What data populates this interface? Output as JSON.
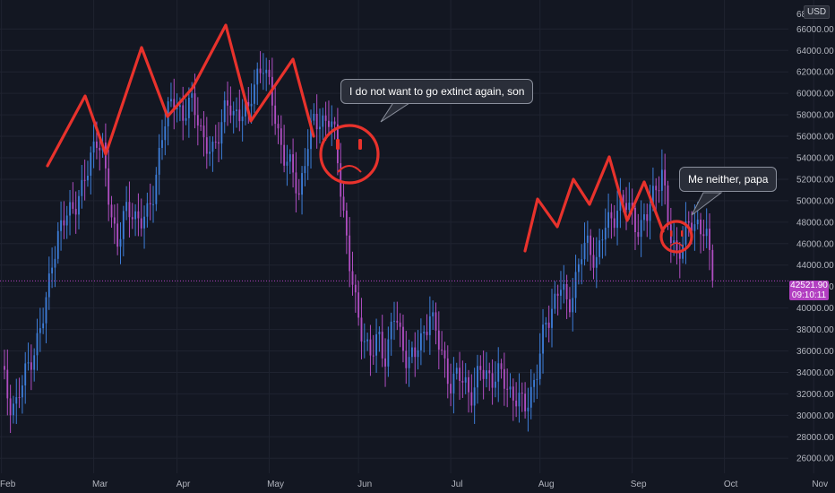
{
  "chart_data": {
    "type": "candlestick",
    "currency": "USD",
    "y_ticks": [
      26000,
      28000,
      30000,
      32000,
      34000,
      36000,
      38000,
      40000,
      42000,
      44000,
      46000,
      48000,
      50000,
      52000,
      54000,
      56000,
      58000,
      60000,
      62000,
      64000,
      66000
    ],
    "y_tick_labels": [
      "26000.00",
      "28000.00",
      "30000.00",
      "32000.00",
      "34000.00",
      "36000.00",
      "38000.00",
      "40000.00",
      "42000.00",
      "44000.00",
      "46000.00",
      "48000.00",
      "50000.00",
      "52000.00",
      "54000.00",
      "56000.00",
      "58000.00",
      "60000.00",
      "62000.00",
      "64000.00",
      "66000.00"
    ],
    "y_top_partial_label": "68",
    "ylim": [
      24600,
      68700
    ],
    "x_ticks": [
      "Feb",
      "Mar",
      "Apr",
      "May",
      "Jun",
      "Jul",
      "Aug",
      "Sep",
      "Oct",
      "Nov"
    ],
    "days_visible": 265,
    "data_days": 239,
    "month_start_day": [
      0,
      31,
      59,
      90,
      120,
      151,
      181,
      212,
      243,
      273
    ],
    "close_path": [
      [
        0,
        34000
      ],
      [
        3,
        31500
      ],
      [
        6,
        31000
      ],
      [
        9,
        33000
      ],
      [
        12,
        35500
      ],
      [
        15,
        37000
      ],
      [
        18,
        39500
      ],
      [
        21,
        45000
      ],
      [
        24,
        47000
      ],
      [
        27,
        48500
      ],
      [
        30,
        50000
      ],
      [
        33,
        50500
      ],
      [
        36,
        53000
      ],
      [
        39,
        56500
      ],
      [
        42,
        54000
      ],
      [
        45,
        49000
      ],
      [
        48,
        46500
      ],
      [
        51,
        48500
      ],
      [
        54,
        49000
      ],
      [
        57,
        48500
      ],
      [
        60,
        48000
      ],
      [
        63,
        51000
      ],
      [
        66,
        56000
      ],
      [
        69,
        58000
      ],
      [
        72,
        60000
      ],
      [
        75,
        57500
      ],
      [
        78,
        59000
      ],
      [
        81,
        58500
      ],
      [
        84,
        55000
      ],
      [
        87,
        54000
      ],
      [
        90,
        57000
      ],
      [
        93,
        59000
      ],
      [
        96,
        57500
      ],
      [
        99,
        59000
      ],
      [
        102,
        58000
      ],
      [
        105,
        61000
      ],
      [
        108,
        63500
      ],
      [
        111,
        60000
      ],
      [
        114,
        56500
      ],
      [
        117,
        54500
      ],
      [
        120,
        52500
      ],
      [
        123,
        50500
      ],
      [
        126,
        55000
      ],
      [
        129,
        57000
      ],
      [
        132,
        57500
      ],
      [
        135,
        58000
      ],
      [
        138,
        55500
      ],
      [
        141,
        50000
      ],
      [
        144,
        44000
      ],
      [
        147,
        39000
      ],
      [
        150,
        37500
      ],
      [
        153,
        35500
      ],
      [
        156,
        37000
      ],
      [
        159,
        35500
      ],
      [
        162,
        39500
      ],
      [
        165,
        37000
      ],
      [
        168,
        35500
      ],
      [
        171,
        35500
      ],
      [
        174,
        37000
      ],
      [
        177,
        40000
      ],
      [
        180,
        37000
      ],
      [
        183,
        35000
      ],
      [
        186,
        33000
      ],
      [
        189,
        33500
      ],
      [
        192,
        33000
      ],
      [
        195,
        32000
      ],
      [
        198,
        34000
      ],
      [
        201,
        34000
      ],
      [
        204,
        33500
      ],
      [
        207,
        33500
      ],
      [
        210,
        32500
      ],
      [
        213,
        31500
      ],
      [
        216,
        30500
      ],
      [
        219,
        32500
      ],
      [
        222,
        34500
      ],
      [
        225,
        38500
      ],
      [
        228,
        40500
      ],
      [
        231,
        42000
      ],
      [
        234,
        40000
      ],
      [
        237,
        42500
      ],
      [
        240,
        45000
      ],
      [
        243,
        46000
      ],
      [
        246,
        44500
      ],
      [
        249,
        47000
      ],
      [
        252,
        48500
      ],
      [
        255,
        49500
      ],
      [
        258,
        49500
      ],
      [
        261,
        49000
      ],
      [
        264,
        47000
      ],
      [
        267,
        48500
      ],
      [
        270,
        51500
      ],
      [
        273,
        52500
      ],
      [
        276,
        47000
      ],
      [
        279,
        45500
      ],
      [
        282,
        46000
      ],
      [
        285,
        48000
      ],
      [
        288,
        48000
      ],
      [
        291,
        47000
      ],
      [
        294,
        42500
      ]
    ],
    "last_price": 42521.9,
    "last_price_label": "42521.90",
    "countdown": "09:10:11"
  },
  "annotations": {
    "callout_left": "I do not want to go extinct again, son",
    "callout_right": "Me neither, papa"
  },
  "colors": {
    "background": "#131722",
    "grid": "#1f2330",
    "candle_up": "#3d7dd8",
    "candle_down": "#b04ec2",
    "drawing_red": "#e8322c",
    "axis_text": "#b2b5be",
    "price_tag": "#b23fc1"
  }
}
